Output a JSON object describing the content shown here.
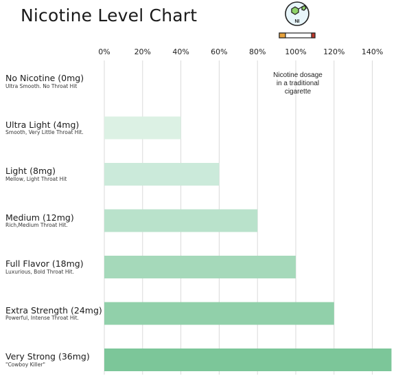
{
  "title": "Nicotine Level Chart",
  "annotation": "Nicotine dosage in a traditional cigarette",
  "logo": {
    "icon": "nicotine-molecule-icon",
    "badge_text": "NI"
  },
  "chart_data": {
    "type": "bar",
    "orientation": "horizontal",
    "title": "Nicotine Level Chart",
    "xlim": [
      0,
      150
    ],
    "x_ticks": [
      0,
      20,
      40,
      60,
      80,
      100,
      120,
      140
    ],
    "x_tick_labels": [
      "0%",
      "20%",
      "40%",
      "60%",
      "80%",
      "100%",
      "120%",
      "140%"
    ],
    "grid": true,
    "reference_value": 100,
    "categories": [
      {
        "label": "No Nicotine (0mg)",
        "desc": "Ultra Smooth. No Throat Hit",
        "value": 0,
        "color": "#eef8f2"
      },
      {
        "label": "Ultra Light (4mg)",
        "desc": "Smooth, Very Little Throat Hit.",
        "value": 40,
        "color": "#dcf1e4"
      },
      {
        "label": "Light (8mg)",
        "desc": "Mellow, Light Throat Hit",
        "value": 60,
        "color": "#cbeada"
      },
      {
        "label": "Medium (12mg)",
        "desc": "Rich,Medium Throat Hit.",
        "value": 80,
        "color": "#b9e2cb"
      },
      {
        "label": "Full Flavor (18mg)",
        "desc": "Luxurious, Bold Throat Hit.",
        "value": 100,
        "color": "#a5d9ba"
      },
      {
        "label": "Extra Strength (24mg)",
        "desc": "Powerful, Intense Throat Hit.",
        "value": 120,
        "color": "#91d0aa"
      },
      {
        "label": "Very Strong (36mg)",
        "desc": "\"Cowboy Killer\"",
        "value": 150,
        "color": "#7cc699"
      }
    ]
  },
  "colors": {
    "grid": "#d9d9d9",
    "cigarette_tip": "#e6a23c",
    "cigarette_end": "#c0392b"
  }
}
